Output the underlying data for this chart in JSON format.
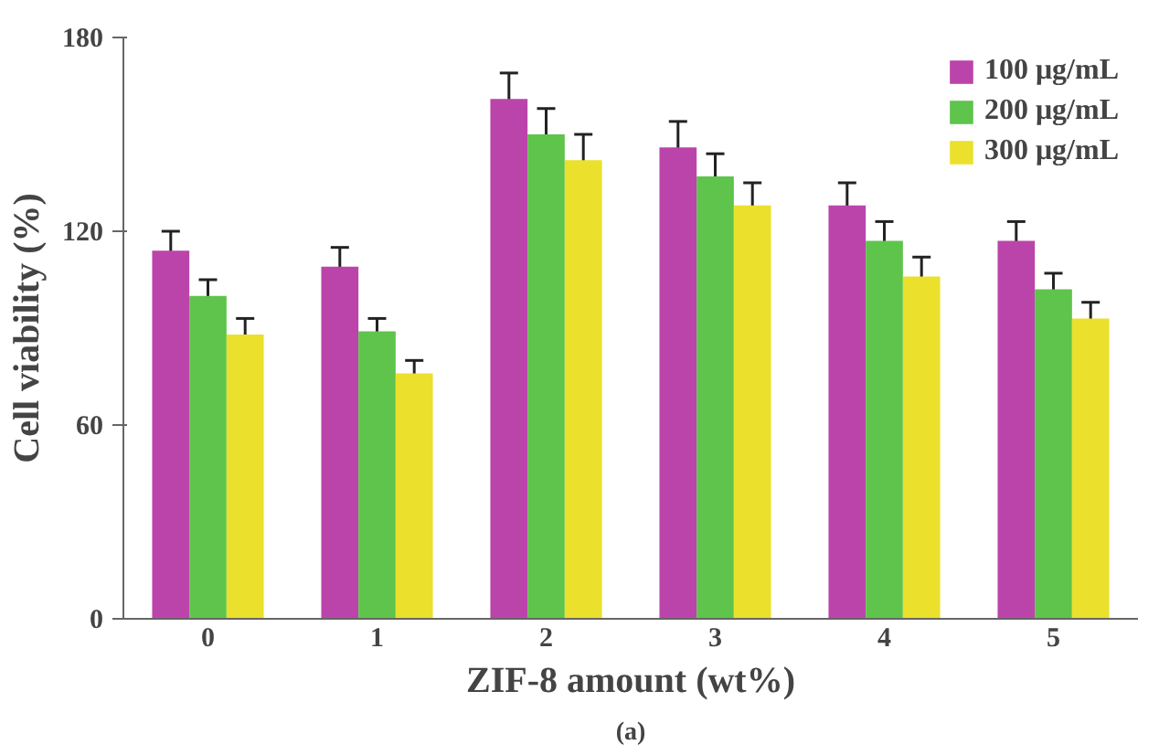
{
  "chart_data": {
    "type": "bar",
    "xlabel": "ZIF-8 amount (wt%)",
    "ylabel": "Cell viability (%)",
    "categories": [
      "0",
      "1",
      "2",
      "3",
      "4",
      "5"
    ],
    "series": [
      {
        "name": "100 μg/mL",
        "color": "#bb44aa",
        "values": [
          114,
          109,
          161,
          146,
          128,
          117
        ],
        "errors": [
          6,
          6,
          8,
          8,
          7,
          6
        ]
      },
      {
        "name": "200 μg/mL",
        "color": "#5ec44c",
        "values": [
          100,
          89,
          150,
          137,
          117,
          102
        ],
        "errors": [
          5,
          4,
          8,
          7,
          6,
          5
        ]
      },
      {
        "name": "300 μg/mL",
        "color": "#ebe02c",
        "values": [
          88,
          76,
          142,
          128,
          106,
          93
        ],
        "errors": [
          5,
          4,
          8,
          7,
          6,
          5
        ]
      }
    ],
    "ylim": [
      0,
      180
    ],
    "yticks": [
      0,
      60,
      120,
      180
    ],
    "grid": false,
    "legend": "top right",
    "annotations": [
      "(a)"
    ]
  }
}
